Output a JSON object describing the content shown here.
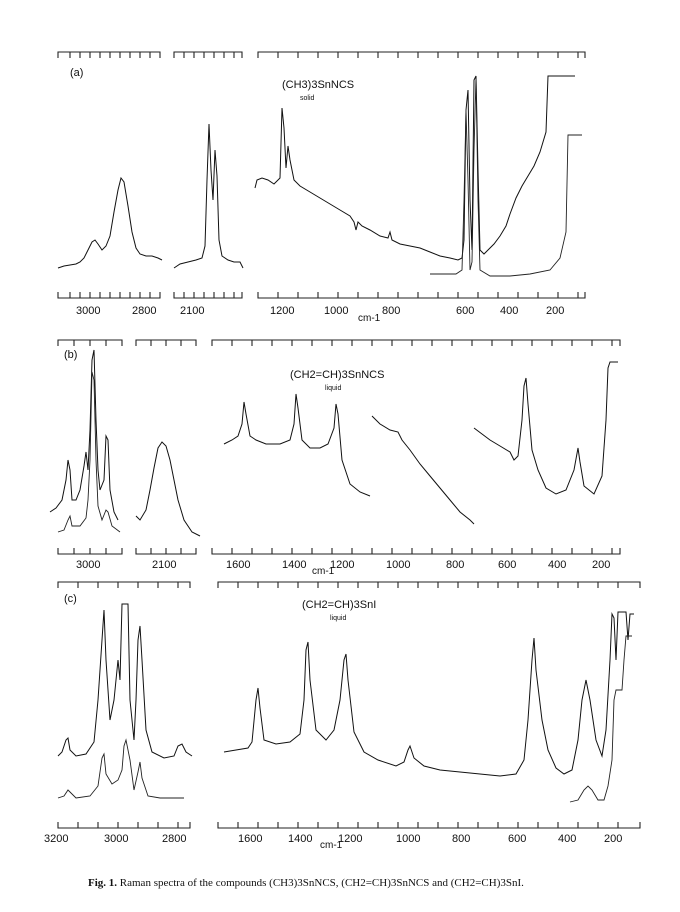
{
  "caption": {
    "fig_label": "Fig. 1.",
    "text": "Raman spectra of the compounds (CH3)3SnNCS, (CH2=CH)3SnNCS and (CH2=CH)3SnI."
  },
  "panels": [
    {
      "label": "(a)",
      "compound": "(CH3)3SnNCS",
      "state": "solid",
      "axis_unit": "cm-1",
      "tick_labels": [
        "3000",
        "2800",
        "2100",
        "1200",
        "1000",
        "800",
        "600",
        "400",
        "200"
      ]
    },
    {
      "label": "(b)",
      "compound": "(CH2=CH)3SnNCS",
      "state": "liquid",
      "axis_unit": "cm-1",
      "tick_labels": [
        "3000",
        "2100",
        "1600",
        "1400",
        "1200",
        "1000",
        "800",
        "600",
        "400",
        "200"
      ]
    },
    {
      "label": "(c)",
      "compound": "(CH2=CH)3SnI",
      "state": "liquid",
      "axis_unit": "cm-1",
      "tick_labels": [
        "3200",
        "3000",
        "2800",
        "1600",
        "1400",
        "1200",
        "1000",
        "800",
        "600",
        "400",
        "200"
      ]
    }
  ]
}
